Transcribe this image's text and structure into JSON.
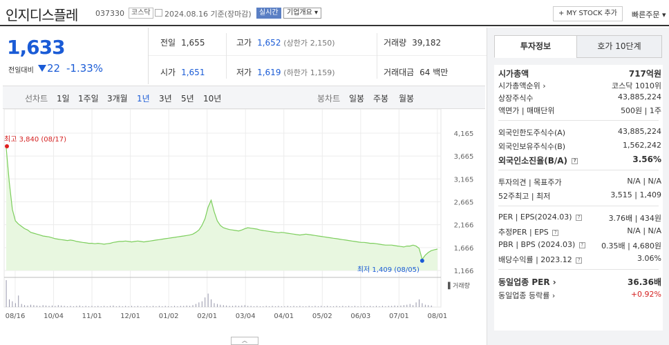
{
  "header": {
    "stock_name": "인지디스플레",
    "stock_code": "037330",
    "market": "코스닥",
    "date": "2024.08.16",
    "basis": "기준(장마감)",
    "realtime": "실시간",
    "company_info": "기업개요",
    "my_stock_button": "+ MY STOCK 추가",
    "fast_order": "빠른주문"
  },
  "quote": {
    "price": "1,633",
    "change_label": "전일대비",
    "change": "22",
    "change_pct": "-1.33%"
  },
  "stats": {
    "prev_close_label": "전일",
    "prev_close": "1,655",
    "high_label": "고가",
    "high": "1,652",
    "upper_limit_label": "(상한가",
    "upper_limit": "2,150)",
    "volume_label": "거래량",
    "volume": "39,182",
    "open_label": "시가",
    "open": "1,651",
    "low_label": "저가",
    "low": "1,619",
    "lower_limit_label": "(하한가",
    "lower_limit": "1,159)",
    "amount_label": "거래대금",
    "amount": "64 백만"
  },
  "period_bar": {
    "line_label": "선차트",
    "line_periods": [
      "1일",
      "1주일",
      "3개월",
      "1년",
      "3년",
      "5년",
      "10년"
    ],
    "active_period": "1년",
    "candle_label": "봉차트",
    "candle_periods": [
      "일봉",
      "주봉",
      "월봉"
    ]
  },
  "chart_data": {
    "type": "area",
    "title": "",
    "x_ticks": [
      "08/16",
      "10/04",
      "11/01",
      "12/01",
      "01/02",
      "02/01",
      "03/04",
      "04/01",
      "05/02",
      "06/03",
      "07/01",
      "08/01"
    ],
    "y_ticks": [
      4165,
      3665,
      3165,
      2665,
      2166,
      1666,
      1166
    ],
    "ylim": [
      1166,
      4165
    ],
    "high_annotation": "최고 3,840 (08/17)",
    "low_annotation": "최저 1,409 (08/05)",
    "volume_label": "거래량",
    "series": [
      {
        "values": [
          3840,
          3100,
          2500,
          2250,
          2180,
          2130,
          2080,
          2050,
          2000,
          1980,
          1960,
          1940,
          1920,
          1910,
          1900,
          1880,
          1860,
          1850,
          1840,
          1830,
          1820,
          1830,
          1820,
          1800,
          1790,
          1780,
          1770,
          1760,
          1760,
          1750,
          1760,
          1750,
          1740,
          1750,
          1760,
          1780,
          1790,
          1800,
          1800,
          1810,
          1800,
          1790,
          1800,
          1810,
          1800,
          1790,
          1800,
          1810,
          1820,
          1830,
          1840,
          1850,
          1860,
          1870,
          1880,
          1890,
          1900,
          1910,
          1920,
          1930,
          1940,
          1960,
          2000,
          2050,
          2150,
          2300,
          2550,
          2700,
          2450,
          2250,
          2150,
          2100,
          2080,
          2060,
          2050,
          2040,
          2030,
          2050,
          2080,
          2100,
          2090,
          2080,
          2070,
          2050,
          2040,
          2030,
          2020,
          2010,
          2000,
          1990,
          2000,
          1990,
          1980,
          1970,
          1960,
          1950,
          1940,
          1950,
          1960,
          1950,
          1940,
          1930,
          1920,
          1910,
          1900,
          1890,
          1880,
          1870,
          1860,
          1850,
          1840,
          1830,
          1820,
          1810,
          1800,
          1790,
          1780,
          1780,
          1770,
          1760,
          1760,
          1750,
          1740,
          1730,
          1720,
          1720,
          1720,
          1710,
          1700,
          1690,
          1680,
          1700,
          1700,
          1720,
          1700,
          1650,
          1409,
          1500,
          1560,
          1600,
          1620,
          1633
        ]
      }
    ],
    "volume_values": [
      70,
      20,
      15,
      10,
      30,
      8,
      5,
      4,
      6,
      5,
      4,
      3,
      5,
      4,
      3,
      4,
      3,
      5,
      4,
      3,
      2,
      3,
      2,
      3,
      4,
      2,
      3,
      2,
      3,
      2,
      3,
      2,
      3,
      2,
      3,
      4,
      2,
      3,
      2,
      3,
      2,
      3,
      2,
      3,
      2,
      2,
      3,
      2,
      3,
      2,
      3,
      2,
      3,
      2,
      2,
      3,
      2,
      3,
      3,
      4,
      3,
      5,
      8,
      12,
      15,
      25,
      35,
      20,
      10,
      8,
      6,
      5,
      4,
      3,
      3,
      4,
      3,
      4,
      5,
      3,
      3,
      2,
      3,
      2,
      2,
      3,
      2,
      3,
      2,
      3,
      2,
      2,
      3,
      2,
      3,
      2,
      3,
      2,
      2,
      3,
      2,
      3,
      2,
      3,
      2,
      3,
      2,
      2,
      3,
      2,
      3,
      2,
      3,
      2,
      3,
      2,
      2,
      3,
      2,
      3,
      2,
      3,
      2,
      3,
      2,
      3,
      3,
      4,
      3,
      4,
      5,
      6,
      8,
      5,
      12,
      20,
      10,
      6,
      5,
      4
    ],
    "grid": true
  },
  "side_panel": {
    "tabs": [
      "투자정보",
      "호가 10단계"
    ],
    "active_tab": "투자정보",
    "market_cap_label": "시가총액",
    "market_cap": "717억원",
    "market_cap_rank_label": "시가총액순위",
    "market_cap_rank": "코스닥 1010위",
    "listed_shares_label": "상장주식수",
    "listed_shares": "43,885,224",
    "face_value_label": "액면가 | 매매단위",
    "face_value": "500원 | 1주",
    "foreign_limit_label": "외국인한도주식수(A)",
    "foreign_limit": "43,885,224",
    "foreign_hold_label": "외국인보유주식수(B)",
    "foreign_hold": "1,562,242",
    "foreign_ratio_label": "외국인소진율(B/A)",
    "foreign_ratio": "3.56%",
    "opinion_label": "투자의견 | 목표주가",
    "opinion": "N/A | N/A",
    "week52_label": "52주최고 | 최저",
    "week52": "3,515 | 1,409",
    "per_label": "PER | EPS(2024.03)",
    "per": "3.76배 | 434원",
    "est_per_label": "추정PER | EPS",
    "est_per": "N/A | N/A",
    "pbr_label": "PBR | BPS (2024.03)",
    "pbr": "0.35배 | 4,680원",
    "dividend_label": "배당수익률 | 2023.12",
    "dividend": "3.06%",
    "sector_per_label": "동일업종 PER",
    "sector_per": "36.36배",
    "sector_change_label": "동일업종 등락률",
    "sector_change": "+0.92%"
  }
}
